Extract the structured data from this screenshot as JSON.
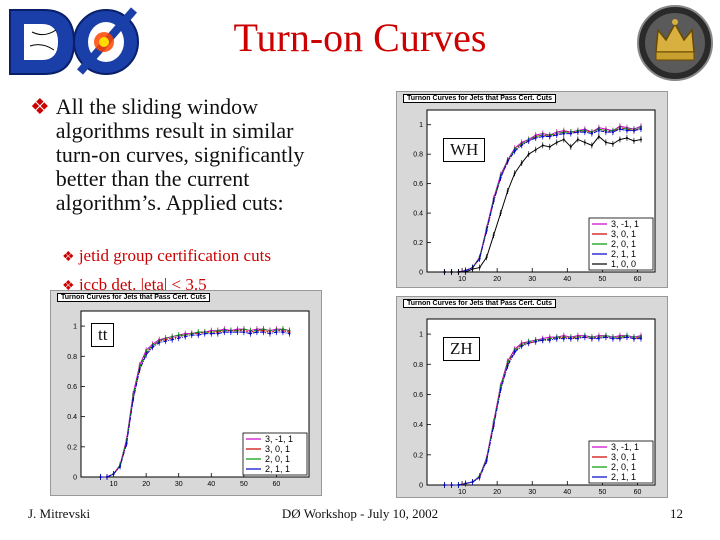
{
  "slide": {
    "title": "Turn-on Curves",
    "main_bullet": "All the sliding window algorithms result in similar turn-on curves, significantly better than the current algorithm’s. Applied cuts:",
    "sub_bullets": [
      "jetid group certification cuts",
      "jccb det. |eta| < 3.5"
    ]
  },
  "footer": {
    "author": "J. Mitrevski",
    "event": "DØ Workshop - July 10, 2002",
    "page": "12"
  },
  "logos": {
    "d0_text": "DØ"
  },
  "colors": {
    "title": "#cc0000",
    "bullet": "#cc0000",
    "plot_bg": "#d8d8d8"
  },
  "chart_data": [
    {
      "type": "line",
      "title": "Turnon Curves for Jets that Pass Cert. Cuts",
      "label": "WH",
      "xlim": [
        0,
        65
      ],
      "ylim": [
        0,
        1.1
      ],
      "xticks": [
        10,
        20,
        30,
        40,
        50,
        60
      ],
      "yticks": [
        0,
        0.2,
        0.4,
        0.6,
        0.8,
        1
      ],
      "x": [
        5,
        7,
        9,
        11,
        13,
        15,
        17,
        19,
        21,
        23,
        25,
        27,
        29,
        31,
        33,
        35,
        37,
        39,
        41,
        43,
        45,
        47,
        49,
        51,
        53,
        55,
        57,
        59,
        61
      ],
      "series": [
        {
          "name": "3, -1, 1",
          "color": "#cc00cc",
          "values": [
            0,
            0,
            0,
            0.01,
            0.03,
            0.1,
            0.3,
            0.5,
            0.66,
            0.76,
            0.84,
            0.88,
            0.9,
            0.93,
            0.94,
            0.93,
            0.95,
            0.96,
            0.95,
            0.96,
            0.97,
            0.95,
            0.98,
            0.97,
            0.96,
            0.99,
            0.98,
            0.97,
            0.99
          ]
        },
        {
          "name": "3, 0, 1",
          "color": "#cc0000",
          "values": [
            0,
            0,
            0,
            0.01,
            0.03,
            0.09,
            0.28,
            0.48,
            0.64,
            0.75,
            0.83,
            0.87,
            0.89,
            0.92,
            0.93,
            0.92,
            0.94,
            0.95,
            0.95,
            0.95,
            0.96,
            0.95,
            0.97,
            0.96,
            0.95,
            0.98,
            0.97,
            0.96,
            0.98
          ]
        },
        {
          "name": "2, 0, 1",
          "color": "#009900",
          "values": [
            0,
            0,
            0,
            0.01,
            0.03,
            0.1,
            0.29,
            0.49,
            0.65,
            0.76,
            0.83,
            0.87,
            0.9,
            0.92,
            0.93,
            0.93,
            0.94,
            0.95,
            0.95,
            0.96,
            0.96,
            0.95,
            0.97,
            0.96,
            0.96,
            0.98,
            0.97,
            0.97,
            0.98
          ]
        },
        {
          "name": "2, 1, 1",
          "color": "#0000cc",
          "values": [
            0,
            0,
            0,
            0.01,
            0.03,
            0.09,
            0.28,
            0.48,
            0.64,
            0.75,
            0.82,
            0.86,
            0.89,
            0.91,
            0.92,
            0.92,
            0.93,
            0.94,
            0.94,
            0.95,
            0.95,
            0.94,
            0.96,
            0.95,
            0.95,
            0.97,
            0.96,
            0.96,
            0.97
          ]
        },
        {
          "name": "1, 0, 0",
          "color": "#000000",
          "values": [
            0,
            0,
            0,
            0,
            0.02,
            0.03,
            0.1,
            0.25,
            0.4,
            0.55,
            0.67,
            0.74,
            0.8,
            0.83,
            0.86,
            0.85,
            0.88,
            0.9,
            0.85,
            0.9,
            0.88,
            0.86,
            0.92,
            0.88,
            0.87,
            0.9,
            0.91,
            0.89,
            0.9
          ]
        }
      ]
    },
    {
      "type": "line",
      "title": "Turnon Curves for Jets that Pass Cert. Cuts",
      "label": "tt",
      "xlim": [
        0,
        70
      ],
      "ylim": [
        0,
        1.1
      ],
      "xticks": [
        10,
        20,
        30,
        40,
        50,
        60
      ],
      "yticks": [
        0,
        0.2,
        0.4,
        0.6,
        0.8,
        1
      ],
      "x": [
        6,
        8,
        10,
        12,
        14,
        16,
        18,
        20,
        22,
        24,
        26,
        28,
        30,
        32,
        34,
        36,
        38,
        40,
        42,
        44,
        46,
        48,
        50,
        52,
        54,
        56,
        58,
        60,
        62,
        64
      ],
      "series": [
        {
          "name": "3, -1, 1",
          "color": "#cc00cc",
          "values": [
            0,
            0,
            0.02,
            0.08,
            0.25,
            0.55,
            0.74,
            0.84,
            0.88,
            0.91,
            0.92,
            0.93,
            0.94,
            0.95,
            0.95,
            0.96,
            0.96,
            0.97,
            0.97,
            0.98,
            0.97,
            0.98,
            0.98,
            0.97,
            0.98,
            0.98,
            0.97,
            0.98,
            0.98,
            0.97
          ]
        },
        {
          "name": "3, 0, 1",
          "color": "#cc0000",
          "values": [
            0,
            0,
            0.02,
            0.07,
            0.23,
            0.52,
            0.72,
            0.82,
            0.87,
            0.9,
            0.91,
            0.92,
            0.93,
            0.94,
            0.95,
            0.95,
            0.96,
            0.96,
            0.96,
            0.97,
            0.97,
            0.97,
            0.97,
            0.96,
            0.97,
            0.97,
            0.96,
            0.97,
            0.97,
            0.96
          ]
        },
        {
          "name": "2, 0, 1",
          "color": "#009900",
          "values": [
            0,
            0,
            0.02,
            0.08,
            0.24,
            0.54,
            0.73,
            0.83,
            0.87,
            0.9,
            0.92,
            0.93,
            0.94,
            0.94,
            0.95,
            0.96,
            0.96,
            0.96,
            0.97,
            0.97,
            0.97,
            0.97,
            0.98,
            0.97,
            0.97,
            0.98,
            0.97,
            0.97,
            0.98,
            0.97
          ]
        },
        {
          "name": "2, 1, 1",
          "color": "#0000cc",
          "values": [
            0,
            0,
            0.02,
            0.07,
            0.22,
            0.51,
            0.71,
            0.81,
            0.86,
            0.89,
            0.9,
            0.91,
            0.92,
            0.93,
            0.94,
            0.94,
            0.95,
            0.95,
            0.95,
            0.96,
            0.96,
            0.96,
            0.96,
            0.95,
            0.96,
            0.96,
            0.95,
            0.96,
            0.96,
            0.95
          ]
        }
      ]
    },
    {
      "type": "line",
      "title": "Turnon Curves for Jets that Pass Cert. Cuts",
      "label": "ZH",
      "xlim": [
        0,
        65
      ],
      "ylim": [
        0,
        1.1
      ],
      "xticks": [
        10,
        20,
        30,
        40,
        50,
        60
      ],
      "yticks": [
        0,
        0.2,
        0.4,
        0.6,
        0.8,
        1
      ],
      "x": [
        5,
        7,
        9,
        11,
        13,
        15,
        17,
        19,
        21,
        23,
        25,
        27,
        29,
        31,
        33,
        35,
        37,
        39,
        41,
        43,
        45,
        47,
        49,
        51,
        53,
        55,
        57,
        59,
        61
      ],
      "series": [
        {
          "name": "3, -1, 1",
          "color": "#cc00cc",
          "values": [
            0,
            0,
            0,
            0.01,
            0.02,
            0.06,
            0.18,
            0.42,
            0.66,
            0.82,
            0.9,
            0.94,
            0.95,
            0.96,
            0.97,
            0.98,
            0.98,
            0.99,
            0.98,
            0.99,
            0.99,
            0.98,
            0.99,
            0.99,
            0.98,
            0.99,
            0.99,
            0.98,
            0.99
          ]
        },
        {
          "name": "3, 0, 1",
          "color": "#cc0000",
          "values": [
            0,
            0,
            0,
            0.01,
            0.02,
            0.05,
            0.17,
            0.4,
            0.64,
            0.8,
            0.89,
            0.93,
            0.94,
            0.95,
            0.96,
            0.97,
            0.97,
            0.98,
            0.97,
            0.98,
            0.98,
            0.97,
            0.98,
            0.98,
            0.97,
            0.98,
            0.98,
            0.97,
            0.98
          ]
        },
        {
          "name": "2, 0, 1",
          "color": "#009900",
          "values": [
            0,
            0,
            0,
            0.01,
            0.02,
            0.06,
            0.17,
            0.41,
            0.65,
            0.81,
            0.89,
            0.93,
            0.95,
            0.96,
            0.96,
            0.97,
            0.98,
            0.98,
            0.98,
            0.98,
            0.99,
            0.98,
            0.98,
            0.99,
            0.98,
            0.98,
            0.99,
            0.98,
            0.98
          ]
        },
        {
          "name": "2, 1, 1",
          "color": "#0000cc",
          "values": [
            0,
            0,
            0,
            0.01,
            0.02,
            0.05,
            0.16,
            0.39,
            0.63,
            0.79,
            0.88,
            0.92,
            0.94,
            0.95,
            0.96,
            0.96,
            0.97,
            0.97,
            0.97,
            0.97,
            0.98,
            0.97,
            0.97,
            0.98,
            0.97,
            0.97,
            0.98,
            0.97,
            0.97
          ]
        }
      ]
    }
  ]
}
